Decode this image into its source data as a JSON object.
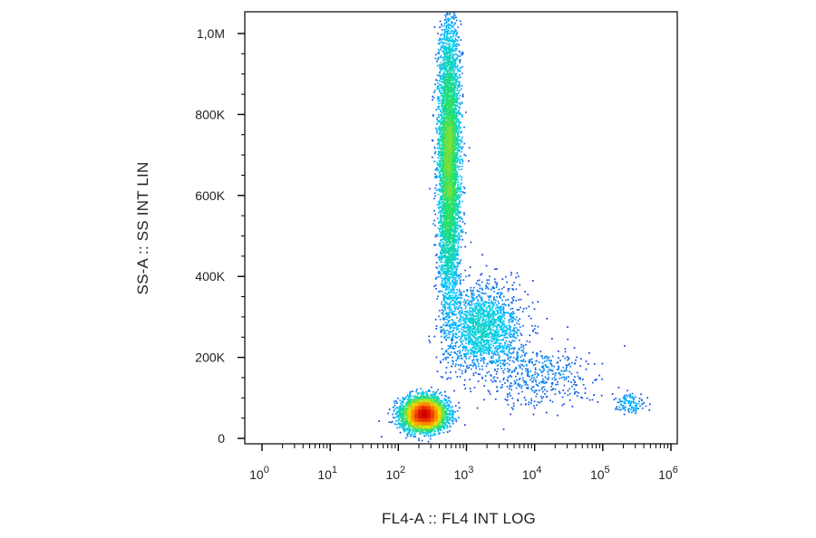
{
  "chart_data": {
    "type": "scatter",
    "title": "",
    "xlabel": "FL4-A :: FL4 INT LOG",
    "ylabel": "SS-A :: SS INT LIN",
    "x_scale": "log",
    "x_range": [
      1,
      1000000
    ],
    "y_range": [
      0,
      1050000
    ],
    "x_ticks": [
      {
        "value": 1,
        "base": "10",
        "exp": "0"
      },
      {
        "value": 10,
        "base": "10",
        "exp": "1"
      },
      {
        "value": 100,
        "base": "10",
        "exp": "2"
      },
      {
        "value": 1000,
        "base": "10",
        "exp": "3"
      },
      {
        "value": 10000,
        "base": "10",
        "exp": "4"
      },
      {
        "value": 100000,
        "base": "10",
        "exp": "5"
      },
      {
        "value": 1000000,
        "base": "10",
        "exp": "6"
      }
    ],
    "y_ticks": [
      {
        "value": 0,
        "label": "0"
      },
      {
        "value": 200000,
        "label": "200K"
      },
      {
        "value": 400000,
        "label": "400K"
      },
      {
        "value": 600000,
        "label": "600K"
      },
      {
        "value": 800000,
        "label": "800K"
      },
      {
        "value": 1000000,
        "label": "1,0M"
      }
    ],
    "grid": false,
    "legend": "none",
    "color_scale": [
      "#1515d6",
      "#00c8ff",
      "#22e06a",
      "#f2e000",
      "#ff6a00",
      "#d40000"
    ],
    "populations": [
      {
        "center_x": 240,
        "center_y": 60000,
        "sd_log10_x": 0.16,
        "sd_y": 20000,
        "points": 4200,
        "density": "highest"
      },
      {
        "center_x": 550,
        "center_y": 680000,
        "sd_log10_x": 0.08,
        "sd_y": 180000,
        "points": 5200,
        "density": "high"
      },
      {
        "center_x": 1800,
        "center_y": 270000,
        "sd_log10_x": 0.28,
        "sd_y": 55000,
        "points": 1700,
        "density": "medium"
      },
      {
        "center_x": 12000,
        "center_y": 150000,
        "sd_log10_x": 0.38,
        "sd_y": 40000,
        "points": 420,
        "density": "low"
      },
      {
        "center_x": 250000,
        "center_y": 85000,
        "sd_log10_x": 0.13,
        "sd_y": 12000,
        "points": 120,
        "density": "low"
      }
    ]
  }
}
